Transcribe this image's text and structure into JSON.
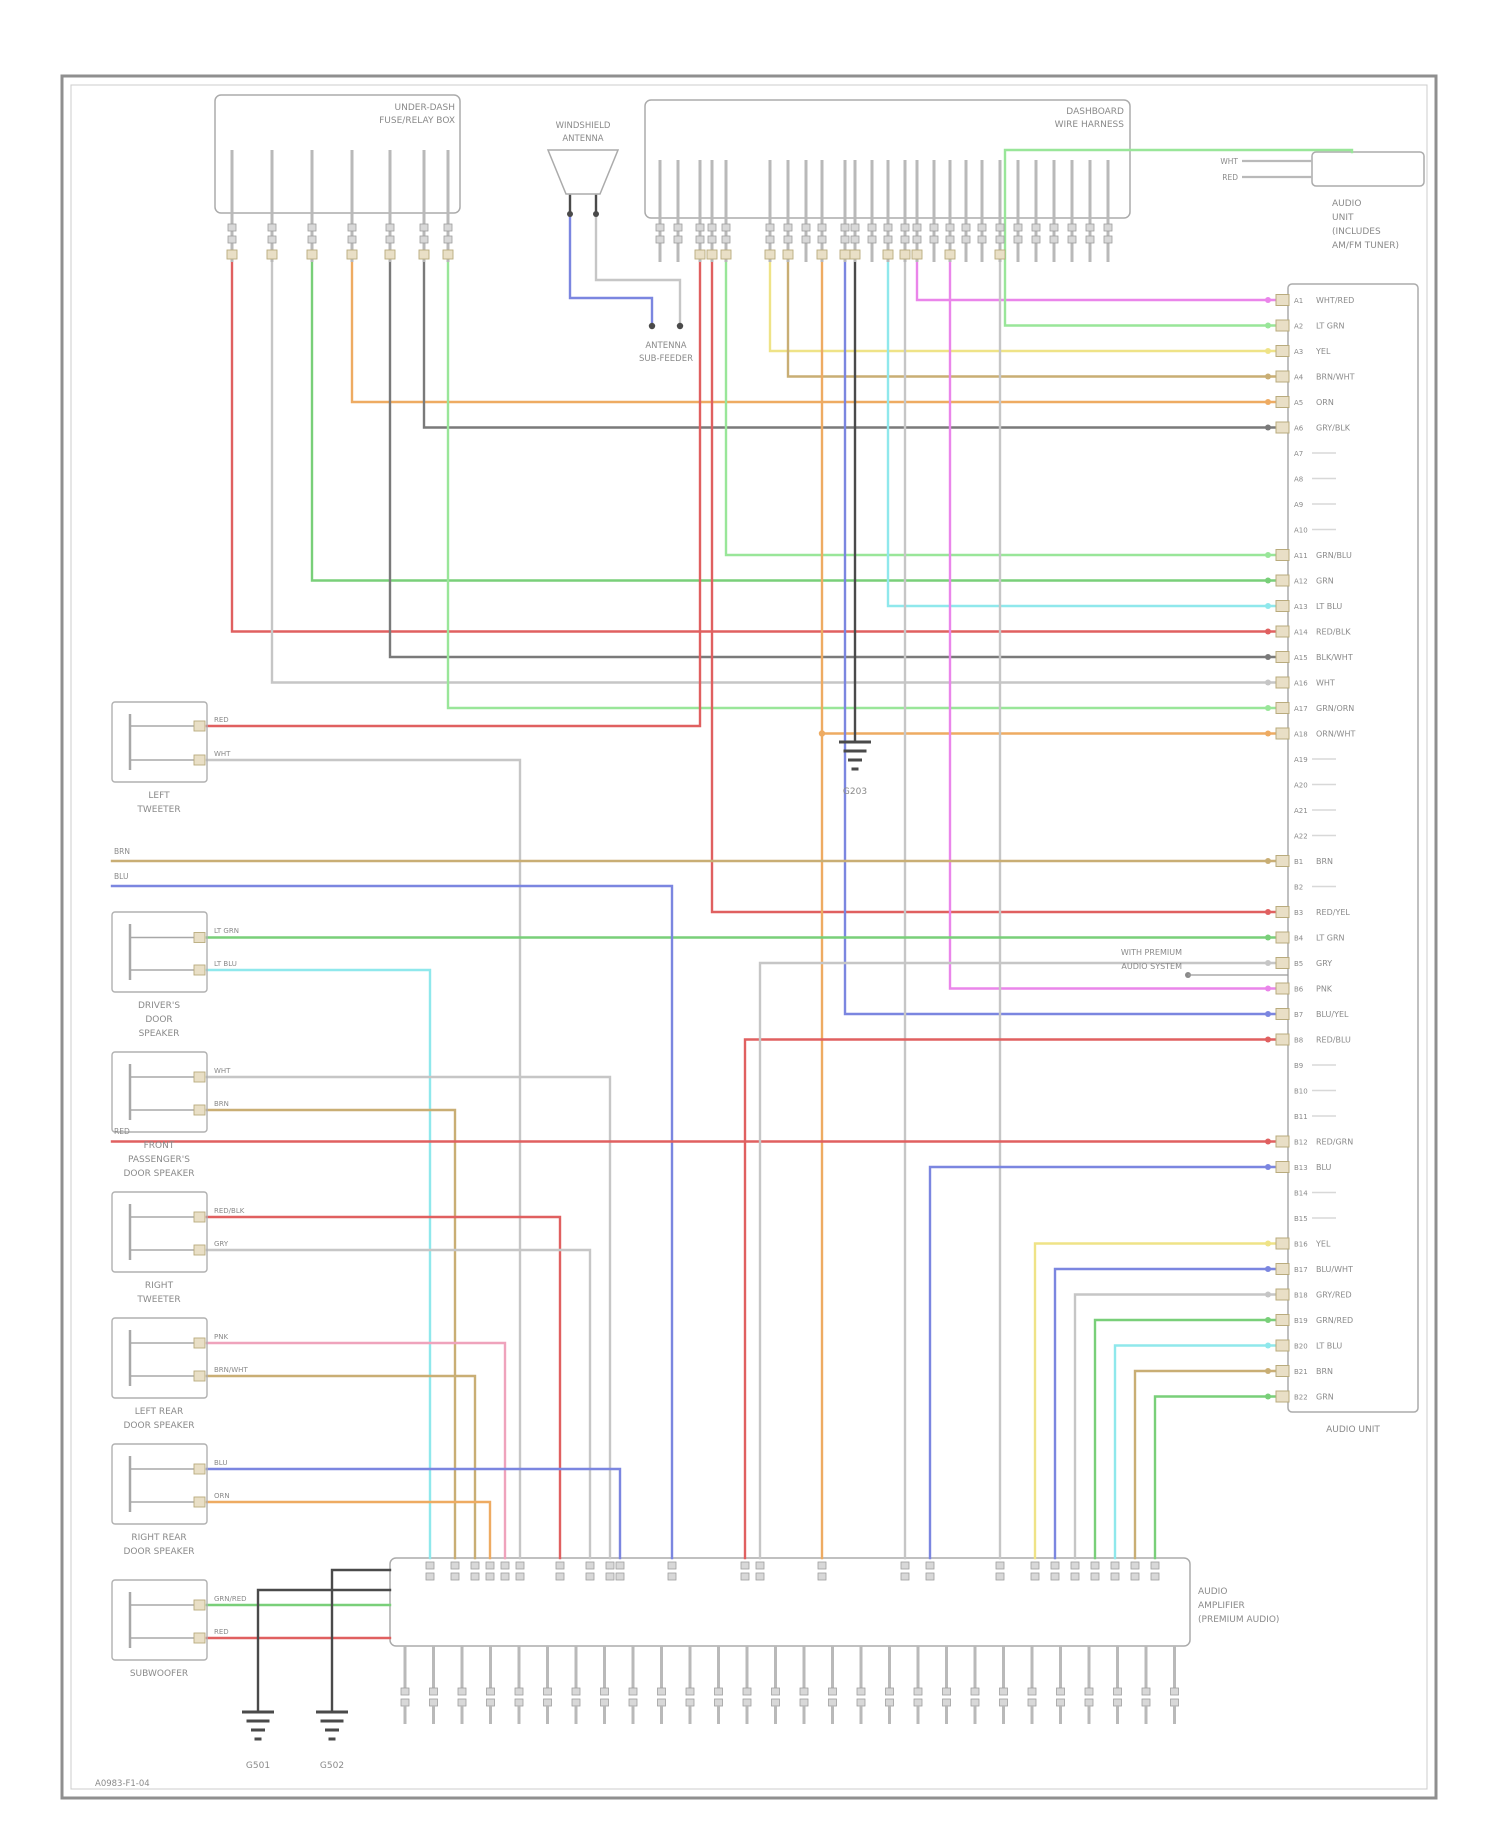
{
  "footer_code": "A0983-F1-04",
  "edge_labels": [
    "BRN",
    "BLU",
    "RED"
  ],
  "top_right_ref": {
    "labels": [
      "WHT",
      "RED"
    ]
  },
  "wire_colors": {
    "red": "#e06060",
    "green": "#79cf79",
    "ltgreen": "#99e699",
    "cyan": "#8fe8ec",
    "blue": "#7b86e0",
    "yellow": "#efe387",
    "orange": "#eeab62",
    "magenta": "#ea85ea",
    "pink": "#efa3bc",
    "tan": "#c9ae74",
    "dark": "#7a7a7a",
    "black": "#4a4a4a",
    "gray": "#c6c6c6"
  },
  "components": {
    "fuse_box": {
      "label_lines": [
        "UNDER-DASH",
        "FUSE/RELAY BOX"
      ]
    },
    "dash_harness": {
      "label_lines": [
        "DASHBOARD",
        "WIRE HARNESS"
      ]
    },
    "antenna": {
      "label_lines": [
        "WINDSHIELD",
        "ANTENNA"
      ]
    },
    "antenna_sub": {
      "label_lines": [
        "ANTENNA",
        "SUB-FEEDER"
      ]
    },
    "audio_unit": {
      "title_lines": [
        "AUDIO",
        "UNIT",
        "(INCLUDES",
        "AM/FM TUNER)"
      ],
      "note_lines": [
        "WITH PREMIUM",
        "AUDIO SYSTEM"
      ],
      "bottom_label": "AUDIO UNIT",
      "rows": [
        {
          "pin": "A1",
          "label": "WHT/RED",
          "wire": "magenta"
        },
        {
          "pin": "A2",
          "label": "LT GRN",
          "wire": "ltgreen"
        },
        {
          "pin": "A3",
          "label": "YEL",
          "wire": "yellow"
        },
        {
          "pin": "A4",
          "label": "BRN/WHT",
          "wire": "tan"
        },
        {
          "pin": "A5",
          "label": "ORN",
          "wire": "orange"
        },
        {
          "pin": "A6",
          "label": "GRY/BLK",
          "wire": "dark"
        },
        {
          "pin": "A7",
          "label": ""
        },
        {
          "pin": "A8",
          "label": ""
        },
        {
          "pin": "A9",
          "label": ""
        },
        {
          "pin": "A10",
          "label": ""
        },
        {
          "pin": "A11",
          "label": "GRN/BLU",
          "wire": "ltgreen"
        },
        {
          "pin": "A12",
          "label": "GRN",
          "wire": "green"
        },
        {
          "pin": "A13",
          "label": "LT BLU",
          "wire": "cyan"
        },
        {
          "pin": "A14",
          "label": "RED/BLK",
          "wire": "red"
        },
        {
          "pin": "A15",
          "label": "BLK/WHT",
          "wire": "dark"
        },
        {
          "pin": "A16",
          "label": "WHT",
          "wire": "gray"
        },
        {
          "pin": "A17",
          "label": "GRN/ORN",
          "wire": "ltgreen"
        },
        {
          "pin": "A18",
          "label": "ORN/WHT",
          "wire": "orange"
        },
        {
          "pin": "A19",
          "label": ""
        },
        {
          "pin": "A20",
          "label": ""
        },
        {
          "pin": "A21",
          "label": ""
        },
        {
          "pin": "A22",
          "label": ""
        },
        {
          "pin": "B1",
          "label": "BRN",
          "wire": "tan"
        },
        {
          "pin": "B2",
          "label": ""
        },
        {
          "pin": "B3",
          "label": "RED/YEL",
          "wire": "red"
        },
        {
          "pin": "B4",
          "label": "LT GRN",
          "wire": "green"
        },
        {
          "pin": "B5",
          "label": "GRY",
          "wire": "gray"
        },
        {
          "pin": "B6",
          "label": "PNK",
          "wire": "magenta"
        },
        {
          "pin": "B7",
          "label": "BLU/YEL",
          "wire": "blue"
        },
        {
          "pin": "B8",
          "label": "RED/BLU",
          "wire": "red"
        },
        {
          "pin": "B9",
          "label": ""
        },
        {
          "pin": "B10",
          "label": ""
        },
        {
          "pin": "B11",
          "label": ""
        },
        {
          "pin": "B12",
          "label": "RED/GRN",
          "wire": "red"
        },
        {
          "pin": "B13",
          "label": "BLU",
          "wire": "blue"
        },
        {
          "pin": "B14",
          "label": ""
        },
        {
          "pin": "B15",
          "label": ""
        },
        {
          "pin": "B16",
          "label": "YEL",
          "wire": "yellow"
        },
        {
          "pin": "B17",
          "label": "BLU/WHT",
          "wire": "blue"
        },
        {
          "pin": "B18",
          "label": "GRY/RED",
          "wire": "gray"
        },
        {
          "pin": "B19",
          "label": "GRN/RED",
          "wire": "green"
        },
        {
          "pin": "B20",
          "label": "LT BLU",
          "wire": "cyan"
        },
        {
          "pin": "B21",
          "label": "BRN",
          "wire": "tan"
        },
        {
          "pin": "B22",
          "label": "GRN",
          "wire": "green"
        }
      ]
    },
    "amplifier": {
      "label_lines": [
        "AUDIO",
        "AMPLIFIER",
        "(PREMIUM AUDIO)"
      ]
    },
    "speakers": [
      {
        "label_lines": [
          "LEFT",
          "TWEETER"
        ],
        "wires": [
          "RED",
          "WHT"
        ]
      },
      {
        "label_lines": [
          "DRIVER'S",
          "DOOR",
          "SPEAKER"
        ],
        "wires": [
          "LT GRN",
          "LT BLU"
        ]
      },
      {
        "label_lines": [
          "FRONT",
          "PASSENGER'S",
          "DOOR SPEAKER"
        ],
        "wires": [
          "WHT",
          "BRN"
        ]
      },
      {
        "label_lines": [
          "RIGHT",
          "TWEETER"
        ],
        "wires": [
          "RED/BLK",
          "GRY"
        ]
      },
      {
        "label_lines": [
          "LEFT REAR",
          "DOOR SPEAKER"
        ],
        "wires": [
          "PNK",
          "BRN/WHT"
        ]
      },
      {
        "label_lines": [
          "RIGHT REAR",
          "DOOR SPEAKER"
        ],
        "wires": [
          "BLU",
          "ORN"
        ]
      },
      {
        "label_lines": [
          "SUBWOOFER"
        ],
        "wires": [
          "GRN/RED",
          "RED"
        ]
      }
    ],
    "grounds": [
      {
        "label": "G501"
      },
      {
        "label": "G502"
      },
      {
        "label": "G203"
      }
    ]
  }
}
